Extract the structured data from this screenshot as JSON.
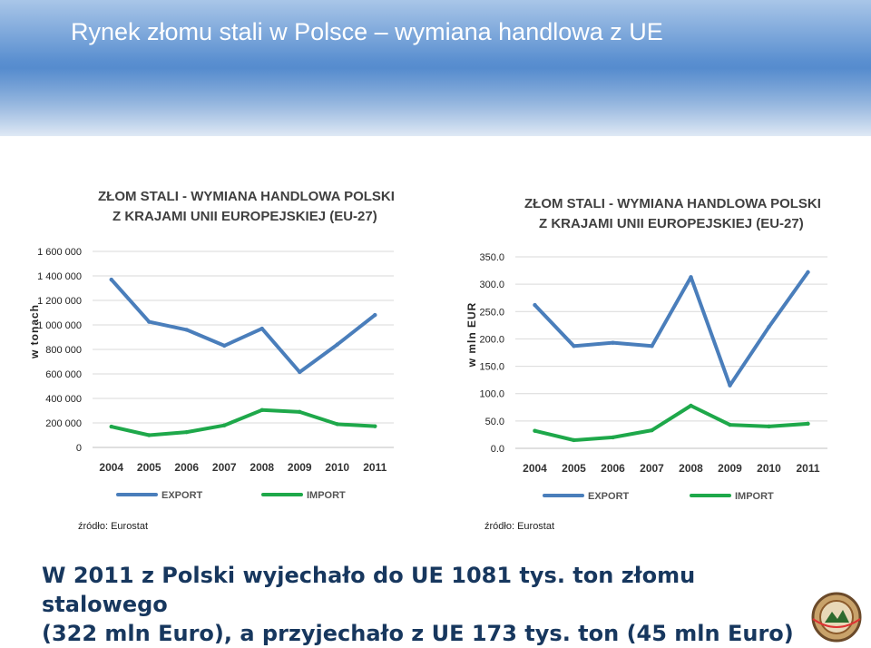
{
  "page": {
    "title": "Rynek złomu stali w Polsce – wymiana handlowa z UE",
    "body_line1": "W 2011 z Polski wyjechało do UE 1081 tys. ton złomu stalowego",
    "body_line2": "(322 mln Euro), a przyjechało z UE 173 tys. ton (45 mln Euro)"
  },
  "colors": {
    "export": "#4a7ebb",
    "import": "#1ea84a",
    "grid": "#d9d9d9",
    "title": "#404040"
  },
  "icons": {
    "logo": "logo-icon"
  },
  "chart_data": [
    {
      "type": "line",
      "title": "ZŁOM STALI - WYMIANA HANDLOWA POLSKI",
      "subtitle": "Z KRAJAMI UNII EUROPEJSKIEJ (EU-27)",
      "xlabel": "",
      "ylabel": "w tonach",
      "ylim": [
        0,
        1600000
      ],
      "yticks": [
        0,
        200000,
        400000,
        600000,
        800000,
        1000000,
        1200000,
        1400000,
        1600000
      ],
      "ytick_labels": [
        "0",
        "200 000",
        "400 000",
        "600 000",
        "800 000",
        "1 000 000",
        "1 200 000",
        "1 400 000",
        "1 600 000"
      ],
      "grid": true,
      "legend": "bottom",
      "categories": [
        "2004",
        "2005",
        "2006",
        "2007",
        "2008",
        "2009",
        "2010",
        "2011"
      ],
      "series": [
        {
          "name": "EXPORT",
          "color": "#4a7ebb",
          "values": [
            1370000,
            1025000,
            960000,
            830000,
            970000,
            615000,
            840000,
            1081000
          ]
        },
        {
          "name": "IMPORT",
          "color": "#1ea84a",
          "values": [
            170000,
            100000,
            125000,
            180000,
            305000,
            290000,
            190000,
            173000
          ]
        }
      ],
      "source": "źródło: Eurostat"
    },
    {
      "type": "line",
      "title": "ZŁOM STALI - WYMIANA HANDLOWA POLSKI",
      "subtitle": "Z KRAJAMI UNII EUROPEJSKIEJ (EU-27)",
      "xlabel": "",
      "ylabel": "w mln EUR",
      "ylim": [
        0,
        350
      ],
      "yticks": [
        0,
        50,
        100,
        150,
        200,
        250,
        300,
        350
      ],
      "ytick_labels": [
        "0.0",
        "50.0",
        "100.0",
        "150.0",
        "200.0",
        "250.0",
        "300.0",
        "350.0"
      ],
      "grid": true,
      "legend": "bottom",
      "categories": [
        "2004",
        "2005",
        "2006",
        "2007",
        "2008",
        "2009",
        "2010",
        "2011"
      ],
      "series": [
        {
          "name": "EXPORT",
          "color": "#4a7ebb",
          "values": [
            262,
            187,
            193,
            187,
            313,
            115,
            222,
            322
          ]
        },
        {
          "name": "IMPORT",
          "color": "#1ea84a",
          "values": [
            32,
            15,
            20,
            33,
            78,
            43,
            40,
            45
          ]
        }
      ],
      "source": "źródło: Eurostat"
    }
  ]
}
